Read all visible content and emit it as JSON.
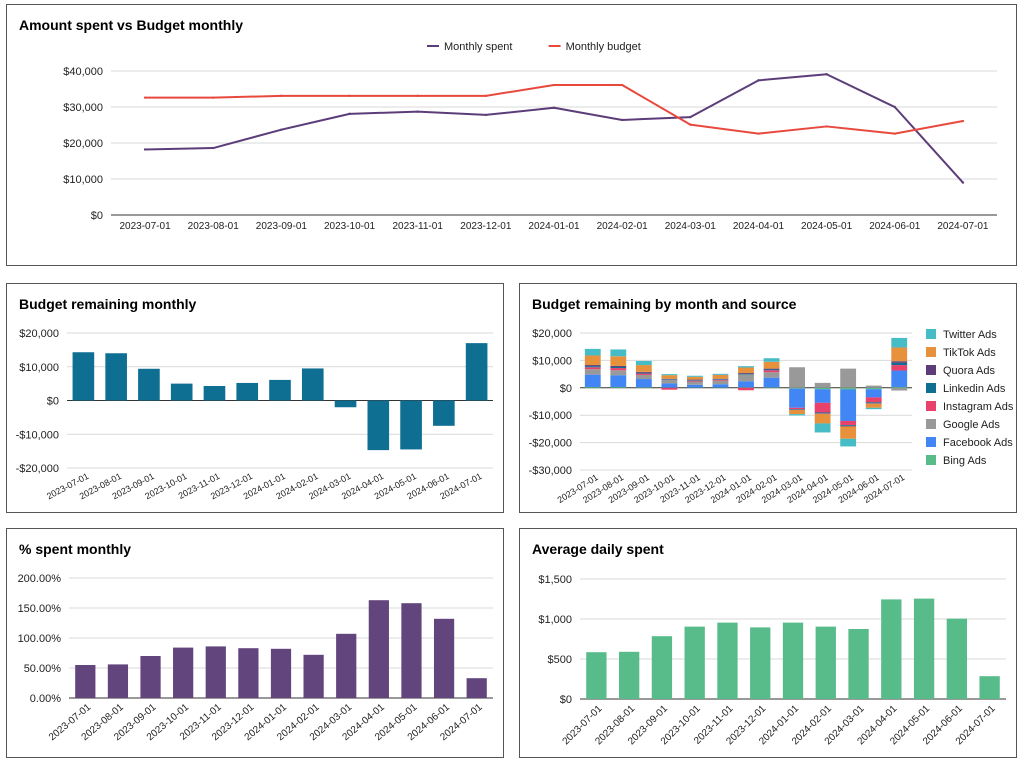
{
  "chart_data": [
    {
      "id": "spent-vs-budget",
      "type": "line",
      "title": "Amount spent vs Budget monthly",
      "categories": [
        "2023-07-01",
        "2023-08-01",
        "2023-09-01",
        "2023-10-01",
        "2023-11-01",
        "2023-12-01",
        "2024-01-01",
        "2024-02-01",
        "2024-03-01",
        "2024-04-01",
        "2024-05-01",
        "2024-06-01",
        "2024-07-01"
      ],
      "series": [
        {
          "name": "Monthly spent",
          "color": "#5c3d7a",
          "values": [
            18200,
            18600,
            23700,
            28100,
            28700,
            27800,
            29800,
            26400,
            27200,
            37400,
            39100,
            30000,
            9000
          ]
        },
        {
          "name": "Monthly budget",
          "color": "#e8493d",
          "values": [
            32600,
            32600,
            33100,
            33100,
            33100,
            33100,
            36100,
            36100,
            25100,
            22600,
            24600,
            22600,
            26100
          ]
        }
      ],
      "yticks": [
        0,
        10000,
        20000,
        30000,
        40000
      ],
      "ytick_labels": [
        "$0",
        "$10,000",
        "$20,000",
        "$30,000",
        "$40,000"
      ],
      "ylim": [
        0,
        40000
      ],
      "legend": "top"
    },
    {
      "id": "budget-remaining",
      "type": "bar",
      "title": "Budget remaining monthly",
      "color": "#0f6f93",
      "categories": [
        "2023-07-01",
        "2023-08-01",
        "2023-09-01",
        "2023-10-01",
        "2023-11-01",
        "2023-12-01",
        "2024-01-01",
        "2024-02-01",
        "2024-03-01",
        "2024-04-01",
        "2024-05-01",
        "2024-06-01",
        "2024-07-01"
      ],
      "values": [
        14300,
        14000,
        9400,
        5000,
        4300,
        5200,
        6100,
        9500,
        -2000,
        -14700,
        -14500,
        -7500,
        17000
      ],
      "yticks": [
        -20000,
        -10000,
        0,
        10000,
        20000
      ],
      "ytick_labels": [
        "-$20,000",
        "-$10,000",
        "$0",
        "$10,000",
        "$20,000"
      ],
      "ylim": [
        -20000,
        20000
      ]
    },
    {
      "id": "budget-by-source",
      "type": "bar",
      "stacked": true,
      "title": "Budget remaining by month and source",
      "categories": [
        "2023-07-01",
        "2023-08-01",
        "2023-09-01",
        "2023-10-01",
        "2023-11-01",
        "2023-12-01",
        "2024-01-01",
        "2024-02-01",
        "2024-03-01",
        "2024-04-01",
        "2024-05-01",
        "2024-06-01",
        "2024-07-01"
      ],
      "series": [
        {
          "name": "Bing Ads",
          "color": "#57bb8a",
          "values": [
            300,
            300,
            200,
            100,
            100,
            100,
            200,
            200,
            -300,
            -500,
            -600,
            -500,
            300
          ]
        },
        {
          "name": "Facebook Ads",
          "color": "#4285f4",
          "values": [
            4500,
            4300,
            3000,
            1500,
            1000,
            1200,
            2200,
            3500,
            -7000,
            -5000,
            -11500,
            -3000,
            6000
          ]
        },
        {
          "name": "Google Ads",
          "color": "#999999",
          "values": [
            2000,
            1800,
            1500,
            1300,
            1200,
            1300,
            2500,
            2000,
            7500,
            1800,
            7000,
            800,
            -1000
          ]
        },
        {
          "name": "Instagram Ads",
          "color": "#e8426c",
          "values": [
            700,
            800,
            500,
            -700,
            300,
            300,
            -900,
            700,
            -500,
            -3500,
            -1500,
            -1800,
            2000
          ]
        },
        {
          "name": "Linkedin Ads",
          "color": "#0f6f93",
          "values": [
            400,
            400,
            300,
            200,
            200,
            200,
            200,
            300,
            -200,
            -300,
            -300,
            -300,
            800
          ]
        },
        {
          "name": "Quora Ads",
          "color": "#5c3d7a",
          "values": [
            400,
            400,
            300,
            200,
            200,
            200,
            300,
            300,
            -100,
            -200,
            -200,
            -200,
            600
          ]
        },
        {
          "name": "TikTok Ads",
          "color": "#e8913c",
          "values": [
            3500,
            3500,
            2500,
            1300,
            1000,
            1400,
            2000,
            2500,
            -1500,
            -3500,
            -4500,
            -1500,
            5000
          ]
        },
        {
          "name": "Twitter Ads",
          "color": "#46bdc6",
          "values": [
            2400,
            2500,
            1500,
            400,
            400,
            400,
            500,
            1300,
            -500,
            -3300,
            -2800,
            -500,
            3500
          ]
        }
      ],
      "legend_order": [
        "Twitter Ads",
        "TikTok Ads",
        "Quora Ads",
        "Linkedin Ads",
        "Instagram Ads",
        "Google Ads",
        "Facebook Ads",
        "Bing Ads"
      ],
      "yticks": [
        -30000,
        -20000,
        -10000,
        0,
        10000,
        20000
      ],
      "ytick_labels": [
        "-$30,000",
        "-$20,000",
        "-$10,000",
        "$0",
        "$10,000",
        "$20,000"
      ],
      "ylim": [
        -30000,
        20000
      ],
      "legend": "right"
    },
    {
      "id": "pct-spent",
      "type": "bar",
      "title": "% spent monthly",
      "color": "#62457c",
      "categories": [
        "2023-07-01",
        "2023-08-01",
        "2023-09-01",
        "2023-10-01",
        "2023-11-01",
        "2023-12-01",
        "2024-01-01",
        "2024-02-01",
        "2024-03-01",
        "2024-04-01",
        "2024-05-01",
        "2024-06-01",
        "2024-07-01"
      ],
      "values": [
        55,
        56,
        70,
        84,
        86,
        83,
        82,
        72,
        107,
        163,
        158,
        132,
        33
      ],
      "yticks": [
        0,
        50,
        100,
        150,
        200
      ],
      "ytick_labels": [
        "0.00%",
        "50.00%",
        "100.00%",
        "150.00%",
        "200.00%"
      ],
      "ylim": [
        0,
        200
      ]
    },
    {
      "id": "avg-daily-spent",
      "type": "bar",
      "title": "Average daily spent",
      "color": "#57bb8a",
      "categories": [
        "2023-07-01",
        "2023-08-01",
        "2023-09-01",
        "2023-10-01",
        "2023-11-01",
        "2023-12-01",
        "2024-01-01",
        "2024-02-01",
        "2024-03-01",
        "2024-04-01",
        "2024-05-01",
        "2024-06-01",
        "2024-07-01"
      ],
      "values": [
        585,
        590,
        785,
        905,
        955,
        895,
        955,
        905,
        875,
        1245,
        1255,
        1005,
        285
      ],
      "yticks": [
        0,
        500,
        1000,
        1500
      ],
      "ytick_labels": [
        "$0",
        "$500",
        "$1,000",
        "$1,500"
      ],
      "ylim": [
        0,
        1500
      ]
    }
  ]
}
